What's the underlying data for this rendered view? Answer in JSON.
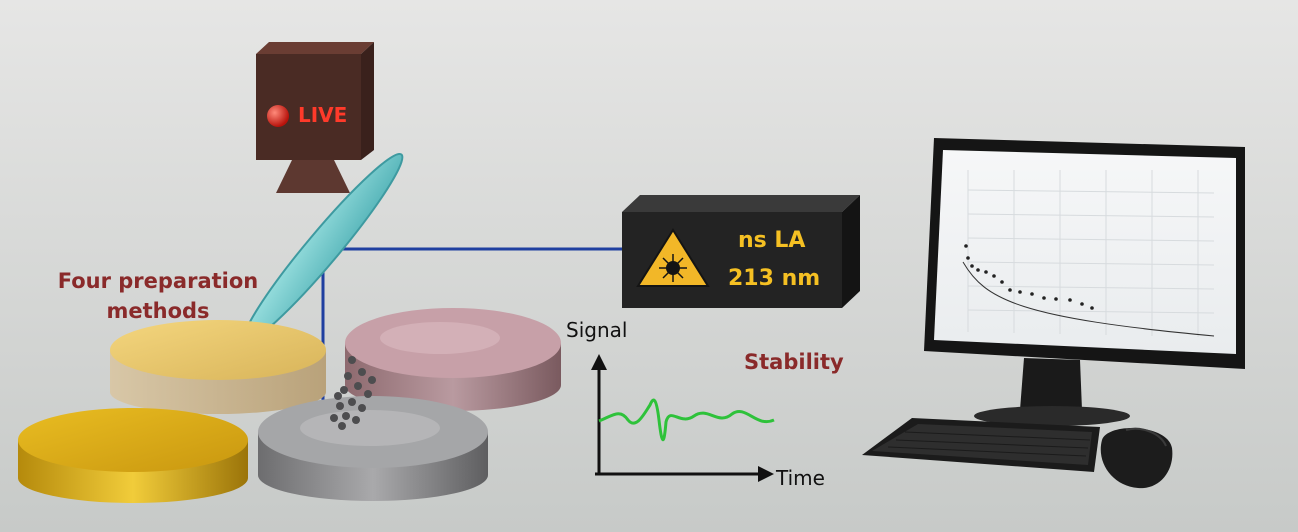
{
  "camera": {
    "live_label": "LIVE"
  },
  "laser": {
    "line1": "ns LA",
    "line2": "213 nm"
  },
  "labels": {
    "preparation_line1": "Four preparation",
    "preparation_line2": "methods",
    "stability": "Stability"
  },
  "signal_plot": {
    "y_label": "Signal",
    "x_label": "Time"
  },
  "colors": {
    "label_red": "#8a2a2a",
    "laser_yellow": "#f5c023",
    "beam_blue": "#1f3fa0",
    "signal_green": "#2ec23a",
    "camera_brown": "#4a2b24"
  }
}
